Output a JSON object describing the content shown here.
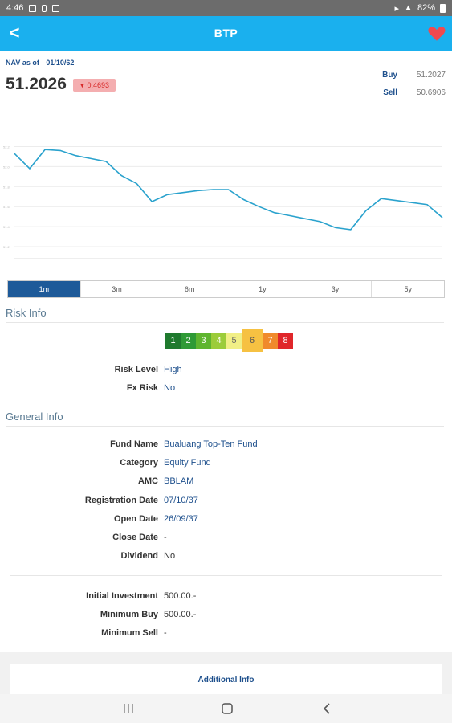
{
  "status": {
    "time": "4:46",
    "battery": "82%"
  },
  "appbar": {
    "title": "BTP",
    "back_icon": "<"
  },
  "nav": {
    "label": "NAV as of",
    "date": "01/10/62",
    "value": "51.2026",
    "change": "0.4693",
    "buy_label": "Buy",
    "buy_value": "51.2027",
    "sell_label": "Sell",
    "sell_value": "50.6906"
  },
  "chart_data": {
    "type": "line",
    "y_ticks": [
      "51.2",
      "51.4",
      "51.6",
      "51.8",
      "52.0",
      "52.2"
    ],
    "ylim": [
      51.08,
      52.3
    ],
    "grid": true,
    "series": [
      {
        "color": "#2aa2cd",
        "values": [
          52.13,
          51.98,
          52.17,
          52.16,
          52.11,
          52.08,
          52.05,
          51.91,
          51.83,
          51.65,
          51.72,
          51.74,
          51.76,
          51.77,
          51.77,
          51.67,
          51.6,
          51.54,
          51.51,
          51.48,
          51.45,
          51.39,
          51.37,
          51.56,
          51.68,
          51.66,
          51.64,
          51.62,
          51.49
        ]
      }
    ]
  },
  "periods": [
    {
      "label": "1m",
      "active": true
    },
    {
      "label": "3m",
      "active": false
    },
    {
      "label": "6m",
      "active": false
    },
    {
      "label": "1y",
      "active": false
    },
    {
      "label": "3y",
      "active": false
    },
    {
      "label": "5y",
      "active": false
    }
  ],
  "risk": {
    "title": "Risk Info",
    "scale": [
      "1",
      "2",
      "3",
      "4",
      "5",
      "6",
      "7",
      "8"
    ],
    "scale_colors": [
      "#1f7a2e",
      "#2f9a36",
      "#5fb52f",
      "#9ccc3a",
      "#f1ef86",
      "#f6c142",
      "#f08a2c",
      "#e0262a"
    ],
    "selected": "6",
    "rows": [
      {
        "label": "Risk Level",
        "value": "High"
      },
      {
        "label": "Fx Risk",
        "value": "No"
      }
    ]
  },
  "general": {
    "title": "General Info",
    "rows": [
      {
        "label": "Fund Name",
        "value": "Bualuang Top-Ten Fund"
      },
      {
        "label": "Category",
        "value": "Equity Fund"
      },
      {
        "label": "AMC",
        "value": "BBLAM"
      },
      {
        "label": "Registration Date",
        "value": "07/10/37"
      },
      {
        "label": "Open Date",
        "value": "26/09/37"
      },
      {
        "label": "Close Date",
        "value": "-"
      },
      {
        "label": "Dividend",
        "value": "No"
      }
    ]
  },
  "investment": {
    "rows": [
      {
        "label": "Initial Investment",
        "value": "500.00.-"
      },
      {
        "label": "Minimum Buy",
        "value": "500.00.-"
      },
      {
        "label": "Minimum Sell",
        "value": "-"
      }
    ]
  },
  "additional": {
    "label": "Additional Info"
  }
}
